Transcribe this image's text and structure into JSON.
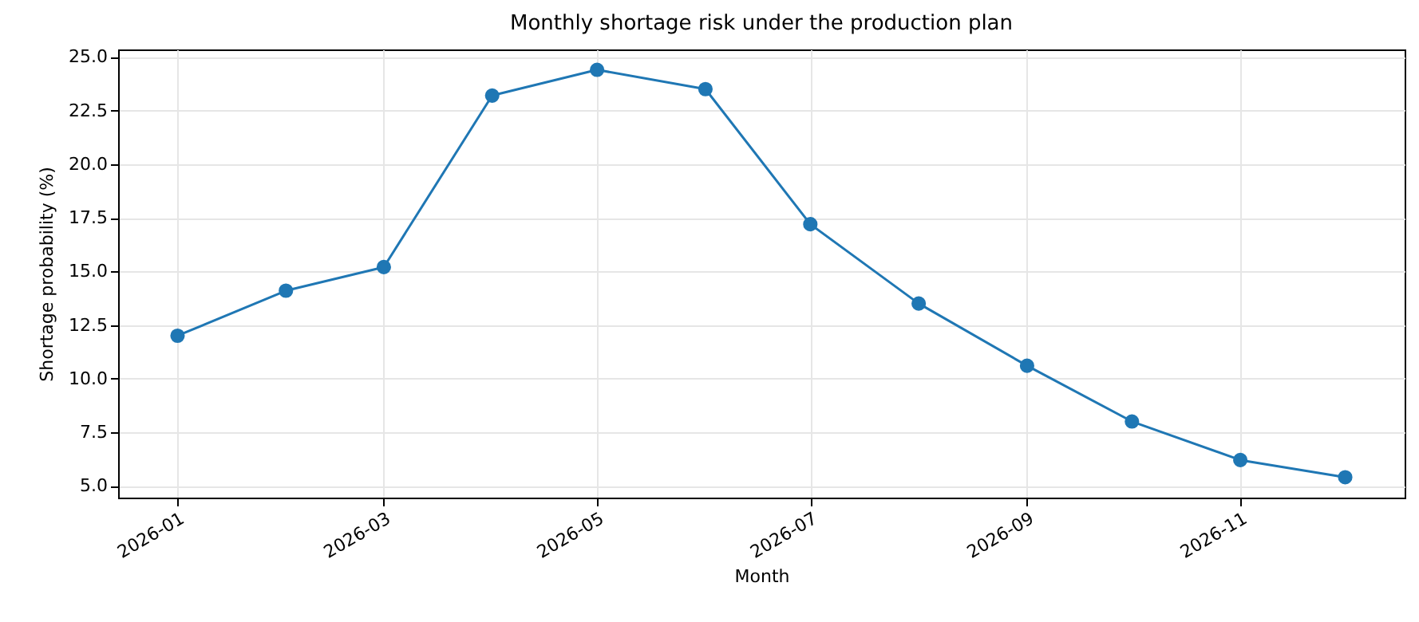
{
  "chart_data": {
    "type": "line",
    "title": "Monthly shortage risk under the production plan",
    "xlabel": "Month",
    "ylabel": "Shortage probability (%)",
    "x": [
      "2026-01",
      "2026-02",
      "2026-03",
      "2026-04",
      "2026-05",
      "2026-06",
      "2026-07",
      "2026-08",
      "2026-09",
      "2026-10",
      "2026-11",
      "2026-12"
    ],
    "series": [
      {
        "color": "#1f77b4",
        "values": [
          12.0,
          14.1,
          15.2,
          23.2,
          24.4,
          23.5,
          17.2,
          13.5,
          10.6,
          8.0,
          6.2,
          5.4
        ]
      }
    ],
    "xlim": [
      "2025-12-15",
      "2026-12-18"
    ],
    "xticks": [
      "2026-01",
      "2026-03",
      "2026-05",
      "2026-07",
      "2026-09",
      "2026-11"
    ],
    "ylim": [
      4.45,
      25.35
    ],
    "yticks": [
      {
        "value": 5,
        "label": "5.0"
      },
      {
        "value": 7.5,
        "label": "7.5"
      },
      {
        "value": 10,
        "label": "10.0"
      },
      {
        "value": 12.5,
        "label": "12.5"
      },
      {
        "value": 15,
        "label": "15.0"
      },
      {
        "value": 17.5,
        "label": "17.5"
      },
      {
        "value": 20,
        "label": "20.0"
      },
      {
        "value": 22.5,
        "label": "22.5"
      },
      {
        "value": 25,
        "label": "25.0"
      }
    ],
    "grid": true,
    "marker": "circle",
    "line_style": "solid"
  }
}
